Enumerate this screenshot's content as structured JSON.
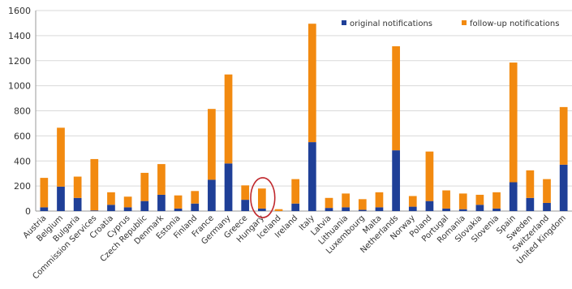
{
  "chart_data": {
    "type": "bar",
    "stacked": true,
    "categories": [
      "Austria",
      "Belgium",
      "Bulgaria",
      "Commission Services",
      "Croatia",
      "Cyprus",
      "Czech Republic",
      "Denmark",
      "Estonia",
      "Finland",
      "France",
      "Germany",
      "Greece",
      "Hungary",
      "Iceland",
      "Ireland",
      "Italy",
      "Latvia",
      "Lithuania",
      "Luxembourg",
      "Malta",
      "Netherlands",
      "Norway",
      "Poland",
      "Portugal",
      "Romania",
      "Slovakia",
      "Slovenia",
      "Spain",
      "Sweden",
      "Switzerland",
      "United Kingdom"
    ],
    "series": [
      {
        "name": "original notifications",
        "color": "#1f3f97",
        "values": [
          30,
          195,
          105,
          5,
          50,
          30,
          80,
          130,
          20,
          60,
          250,
          380,
          90,
          20,
          0,
          60,
          550,
          25,
          30,
          10,
          30,
          485,
          35,
          80,
          20,
          15,
          50,
          20,
          230,
          105,
          65,
          370
        ]
      },
      {
        "name": "follow-up notifications",
        "color": "#f28a10",
        "values": [
          235,
          470,
          170,
          410,
          100,
          85,
          225,
          245,
          105,
          100,
          565,
          710,
          115,
          160,
          15,
          195,
          945,
          80,
          110,
          85,
          120,
          830,
          85,
          395,
          145,
          125,
          80,
          130,
          955,
          220,
          190,
          460
        ]
      }
    ],
    "ylim": [
      0,
      1600
    ],
    "yticks": [
      0,
      200,
      400,
      600,
      800,
      1000,
      1200,
      1400,
      1600
    ],
    "xlabel": "",
    "ylabel": "",
    "grid": true,
    "legend_position": "top-right",
    "annotation": {
      "shape": "ellipse",
      "color": "#c0282d",
      "category": "Hungary"
    }
  }
}
